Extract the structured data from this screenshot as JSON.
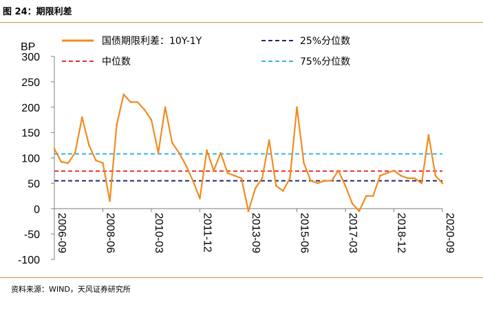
{
  "figure": {
    "title": "图 24：期限利差",
    "source": "资料来源：WIND，天风证券研究所"
  },
  "chart_data": {
    "type": "line",
    "ylabel": "BP",
    "ylim": [
      -100,
      300
    ],
    "yticks": [
      "300",
      "250",
      "200",
      "150",
      "100",
      "50",
      "0",
      "-50",
      "-100"
    ],
    "xticks": [
      "2006-09",
      "2008-06",
      "2010-03",
      "2011-12",
      "2013-09",
      "2015-06",
      "2017-03",
      "2018-12",
      "2020-09"
    ],
    "legend_position": "top",
    "series": [
      {
        "name": "国债期限利差：10Y-1Y",
        "color": "#f28a1e",
        "x": [
          "2006-09",
          "2006-12",
          "2007-03",
          "2007-06",
          "2007-09",
          "2007-12",
          "2008-03",
          "2008-06",
          "2008-09",
          "2008-12",
          "2009-03",
          "2009-06",
          "2009-09",
          "2009-12",
          "2010-03",
          "2010-06",
          "2010-09",
          "2010-12",
          "2011-03",
          "2011-06",
          "2011-09",
          "2011-12",
          "2012-03",
          "2012-06",
          "2012-09",
          "2012-12",
          "2013-03",
          "2013-06",
          "2013-09",
          "2013-12",
          "2014-03",
          "2014-06",
          "2014-09",
          "2014-12",
          "2015-03",
          "2015-06",
          "2015-09",
          "2015-12",
          "2016-03",
          "2016-06",
          "2016-09",
          "2016-12",
          "2017-03",
          "2017-06",
          "2017-09",
          "2017-12",
          "2018-03",
          "2018-06",
          "2018-09",
          "2018-12",
          "2019-03",
          "2019-06",
          "2019-09",
          "2019-12",
          "2020-03",
          "2020-06",
          "2020-09"
        ],
        "values": [
          118,
          92,
          90,
          110,
          180,
          125,
          95,
          90,
          15,
          165,
          225,
          210,
          210,
          195,
          175,
          110,
          200,
          130,
          110,
          85,
          55,
          20,
          115,
          75,
          110,
          70,
          65,
          60,
          -5,
          40,
          60,
          135,
          45,
          35,
          60,
          200,
          90,
          55,
          50,
          55,
          55,
          75,
          45,
          10,
          -5,
          25,
          25,
          65,
          70,
          75,
          65,
          60,
          60,
          50,
          145,
          65,
          50
        ]
      },
      {
        "name": "25%分位数",
        "color": "#1f2a6b",
        "values": [
          55
        ]
      },
      {
        "name": "中位数",
        "color": "#e42c2c",
        "values": [
          74
        ]
      },
      {
        "name": "75%分位数",
        "color": "#2fb5e6",
        "values": [
          108
        ]
      }
    ]
  }
}
